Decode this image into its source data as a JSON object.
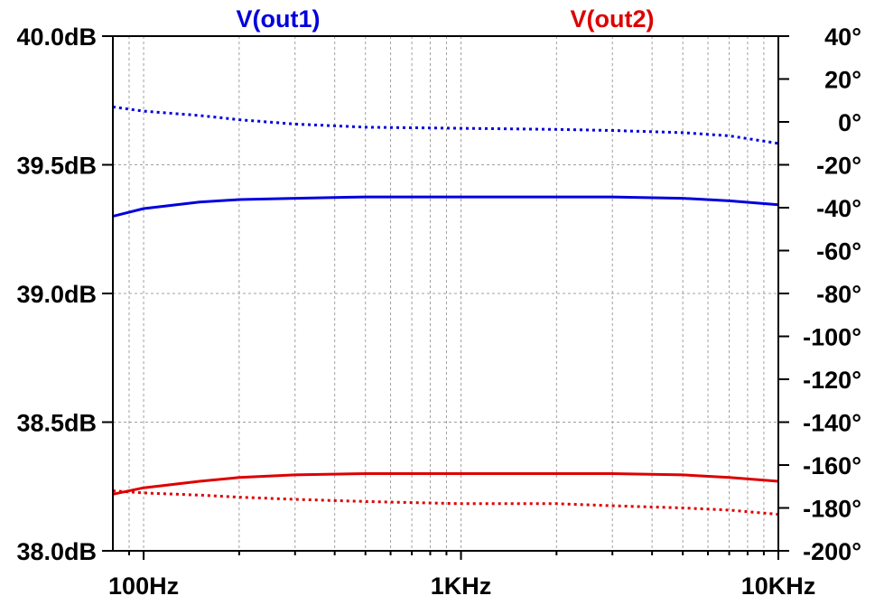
{
  "chart_data": {
    "type": "line",
    "title": "",
    "xlabel": "",
    "ylabel": "",
    "y2label": "",
    "x_scale": "log",
    "xlim": [
      80,
      10000
    ],
    "ylim": [
      38.0,
      40.0
    ],
    "y2lim": [
      -200,
      40
    ],
    "grid": true,
    "x_ticks": [
      {
        "value": 100,
        "label": "100Hz"
      },
      {
        "value": 1000,
        "label": "1KHz"
      },
      {
        "value": 10000,
        "label": "10KHz"
      }
    ],
    "y_ticks": [
      {
        "value": 40.0,
        "label": "40.0dB"
      },
      {
        "value": 39.5,
        "label": "39.5dB"
      },
      {
        "value": 39.0,
        "label": "39.0dB"
      },
      {
        "value": 38.5,
        "label": "38.5dB"
      },
      {
        "value": 38.0,
        "label": "38.0dB"
      }
    ],
    "y2_ticks": [
      {
        "value": 40,
        "label": "40°"
      },
      {
        "value": 20,
        "label": "20°"
      },
      {
        "value": 0,
        "label": "0°"
      },
      {
        "value": -20,
        "label": "-20°"
      },
      {
        "value": -40,
        "label": "-40°"
      },
      {
        "value": -60,
        "label": "-60°"
      },
      {
        "value": -80,
        "label": "-80°"
      },
      {
        "value": -100,
        "label": "-100°"
      },
      {
        "value": -120,
        "label": "-120°"
      },
      {
        "value": -140,
        "label": "-140°"
      },
      {
        "value": -160,
        "label": "-160°"
      },
      {
        "value": -180,
        "label": "-180°"
      },
      {
        "value": -200,
        "label": "-200°"
      }
    ],
    "series": [
      {
        "name": "V(out1)",
        "color": "#0000dd",
        "x": [
          80,
          100,
          150,
          200,
          300,
          500,
          1000,
          2000,
          3000,
          5000,
          7000,
          10000
        ],
        "magnitude_db": [
          39.3,
          39.33,
          39.355,
          39.365,
          39.37,
          39.375,
          39.375,
          39.375,
          39.375,
          39.37,
          39.36,
          39.345
        ],
        "phase_deg": [
          7,
          5,
          3,
          1,
          -1,
          -2.5,
          -3,
          -3.5,
          -4,
          -5,
          -6.5,
          -10
        ]
      },
      {
        "name": "V(out2)",
        "color": "#dd0000",
        "x": [
          80,
          100,
          150,
          200,
          300,
          500,
          1000,
          2000,
          3000,
          5000,
          7000,
          10000
        ],
        "magnitude_db": [
          38.22,
          38.245,
          38.27,
          38.285,
          38.295,
          38.3,
          38.3,
          38.3,
          38.3,
          38.295,
          38.285,
          38.27
        ],
        "phase_deg": [
          -172,
          -173,
          -174,
          -175,
          -176,
          -177,
          -178,
          -178,
          -179,
          -180,
          -181,
          -183
        ]
      }
    ]
  }
}
